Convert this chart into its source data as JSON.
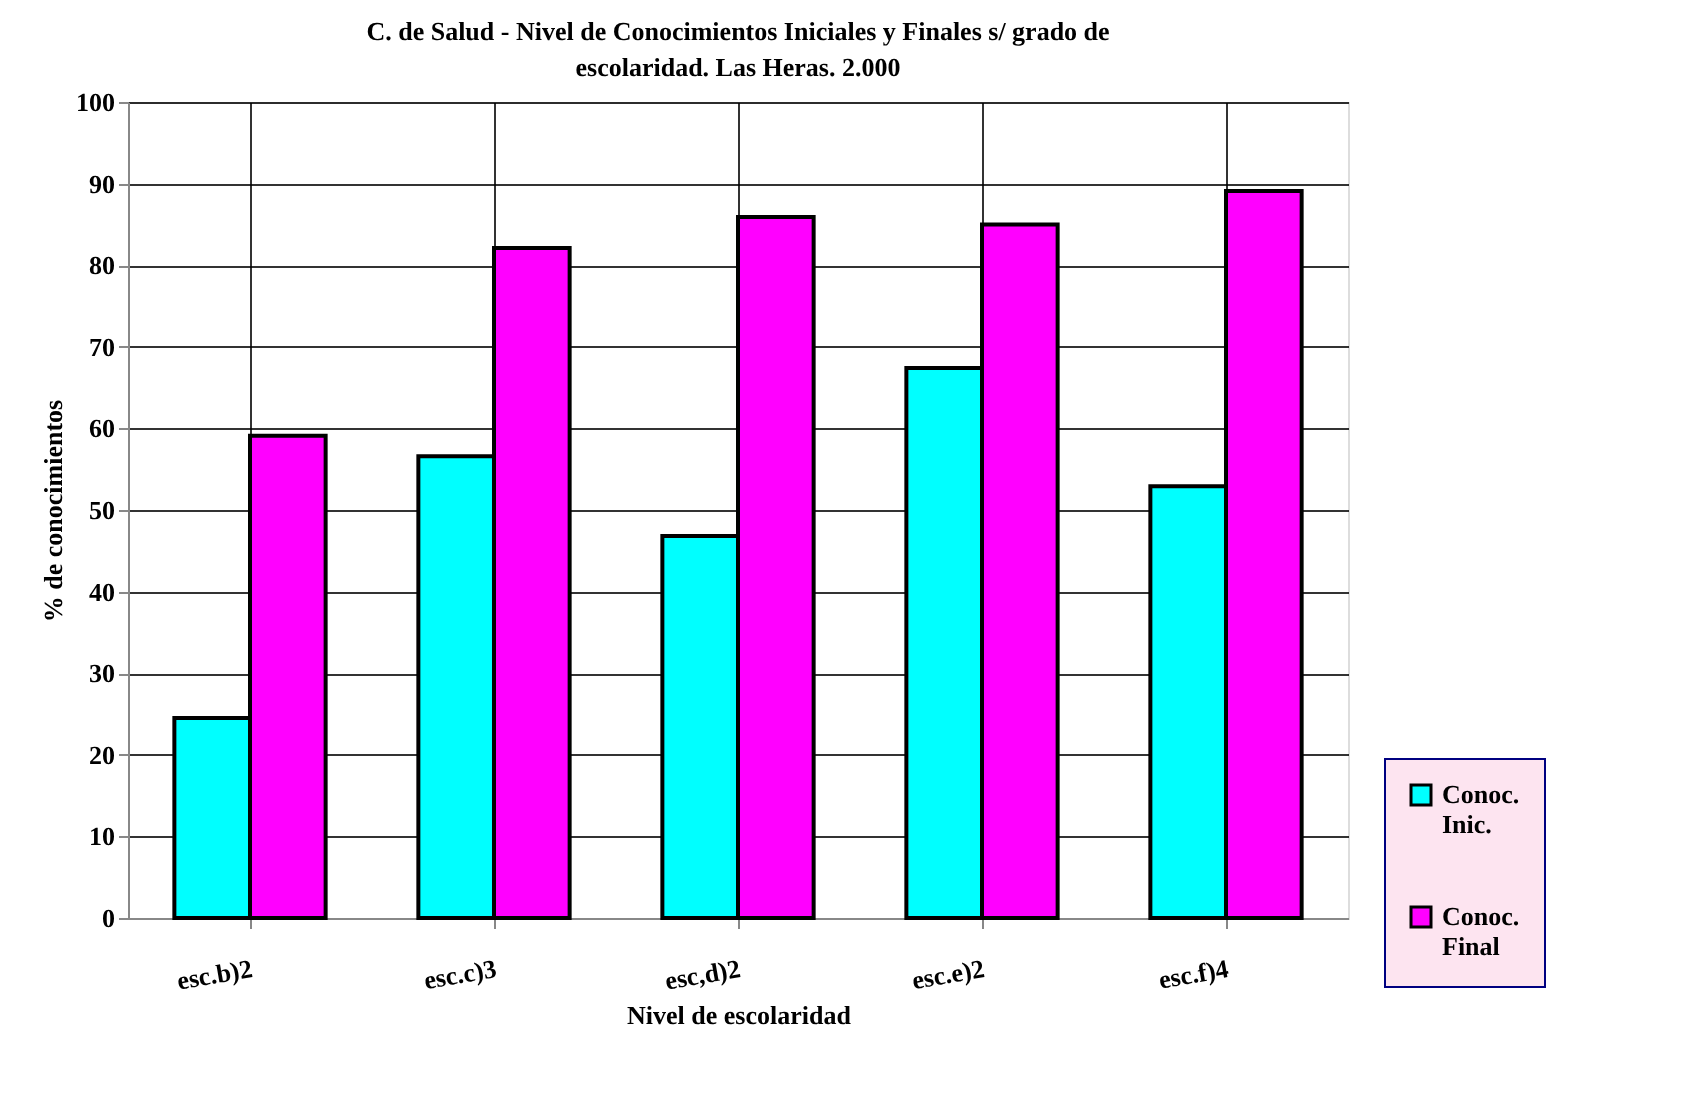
{
  "chart_data": {
    "type": "bar",
    "title": "C. de Salud - Nivel de Conocimientos Iniciales y Finales s/ grado de escolaridad. Las Heras. 2.000",
    "xlabel": "Nivel de escolaridad",
    "ylabel": "% de conocimientos",
    "categories": [
      "esc.b)2",
      "esc.c)3",
      "esc,d)2",
      "esc.e)2",
      "esc.f)4"
    ],
    "series": [
      {
        "name": "Conoc. Inic.",
        "color": "#00ffff",
        "values": [
          24.5,
          56.6,
          46.8,
          67.4,
          52.9
        ]
      },
      {
        "name": "Conoc. Final",
        "color": "#ff00ff",
        "values": [
          59.1,
          82.1,
          85.9,
          85.0,
          89.1
        ]
      }
    ],
    "ylim": [
      0,
      100
    ],
    "yticks": [
      0,
      10,
      20,
      30,
      40,
      50,
      60,
      70,
      80,
      90,
      100
    ],
    "grid": true,
    "legend": "bottom right"
  }
}
